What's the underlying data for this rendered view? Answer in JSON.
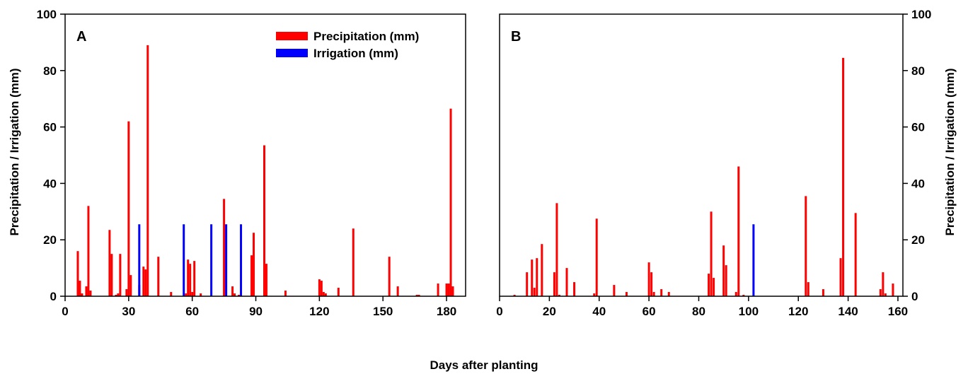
{
  "figure": {
    "xlabel": "Days after planting",
    "ylabel_left": "Precipitation / Irrigation (mm)",
    "ylabel_right": "Precipitation / Irrigation (mm)"
  },
  "legend": [
    {
      "label": "Precipitation (mm)",
      "color": "#ff0000"
    },
    {
      "label": "Irrigation (mm)",
      "color": "#0000ff"
    }
  ],
  "chart_data": [
    {
      "type": "bar",
      "panel_label": "A",
      "xlim": [
        0,
        189
      ],
      "ylim": [
        0,
        100
      ],
      "xticks": [
        0,
        30,
        60,
        90,
        120,
        150,
        180
      ],
      "yticks": [
        0,
        20,
        40,
        60,
        80,
        100
      ],
      "y_axis_side": "left",
      "legend_position": "top-center",
      "series": [
        {
          "name": "Precipitation (mm)",
          "color": "#ff0000",
          "x": [
            6,
            7,
            8,
            10,
            11,
            12,
            21,
            22,
            24,
            25,
            26,
            29,
            30,
            31,
            35,
            37,
            38,
            39,
            44,
            50,
            57,
            58,
            59,
            60,
            61,
            64,
            75,
            79,
            80,
            82,
            88,
            89,
            94,
            95,
            104,
            120,
            121,
            122,
            123,
            129,
            136,
            153,
            157,
            166,
            167,
            176,
            180,
            181,
            182,
            183
          ],
          "values": [
            16,
            5.5,
            1,
            3.5,
            32,
            2,
            23.5,
            15,
            0.5,
            1,
            15,
            2.5,
            62,
            7.5,
            4,
            10.5,
            9.5,
            89,
            14,
            1.5,
            1,
            13,
            11.5,
            1.5,
            12.5,
            1,
            34.5,
            3.5,
            1,
            0.5,
            14.5,
            22.5,
            53.5,
            11.5,
            2,
            6,
            5.5,
            1.5,
            1,
            3,
            24,
            14,
            3.5,
            0.5,
            0.5,
            4.5,
            4.5,
            4.5,
            66.5,
            3.5
          ]
        },
        {
          "name": "Irrigation (mm)",
          "color": "#0000ff",
          "x": [
            35,
            56,
            69,
            76,
            83
          ],
          "values": [
            25.5,
            25.5,
            25.5,
            25.5,
            25.5
          ]
        }
      ]
    },
    {
      "type": "bar",
      "panel_label": "B",
      "xlim": [
        0,
        162
      ],
      "ylim": [
        0,
        100
      ],
      "xticks": [
        0,
        20,
        40,
        60,
        80,
        100,
        120,
        140,
        160
      ],
      "yticks": [
        0,
        20,
        40,
        60,
        80,
        100
      ],
      "y_axis_side": "right",
      "series": [
        {
          "name": "Precipitation (mm)",
          "color": "#ff0000",
          "x": [
            6,
            11,
            13,
            14,
            15,
            17,
            22,
            23,
            24,
            27,
            30,
            38,
            39,
            46,
            51,
            60,
            61,
            62,
            65,
            68,
            84,
            85,
            86,
            90,
            91,
            95,
            96,
            98,
            123,
            124,
            130,
            137,
            138,
            143,
            153,
            154,
            155,
            158
          ],
          "values": [
            0.5,
            8.5,
            13,
            3,
            13.5,
            18.5,
            8.5,
            33,
            0.5,
            10,
            5,
            1,
            27.5,
            4,
            1.5,
            12,
            8.5,
            1.5,
            2.5,
            1.5,
            8,
            30,
            6.5,
            18,
            11,
            1.5,
            46,
            0.5,
            35.5,
            5,
            2.5,
            13.5,
            84.5,
            29.5,
            2.5,
            8.5,
            1,
            4.5
          ]
        },
        {
          "name": "Irrigation (mm)",
          "color": "#0000ff",
          "x": [
            102
          ],
          "values": [
            25.5
          ]
        }
      ]
    }
  ]
}
